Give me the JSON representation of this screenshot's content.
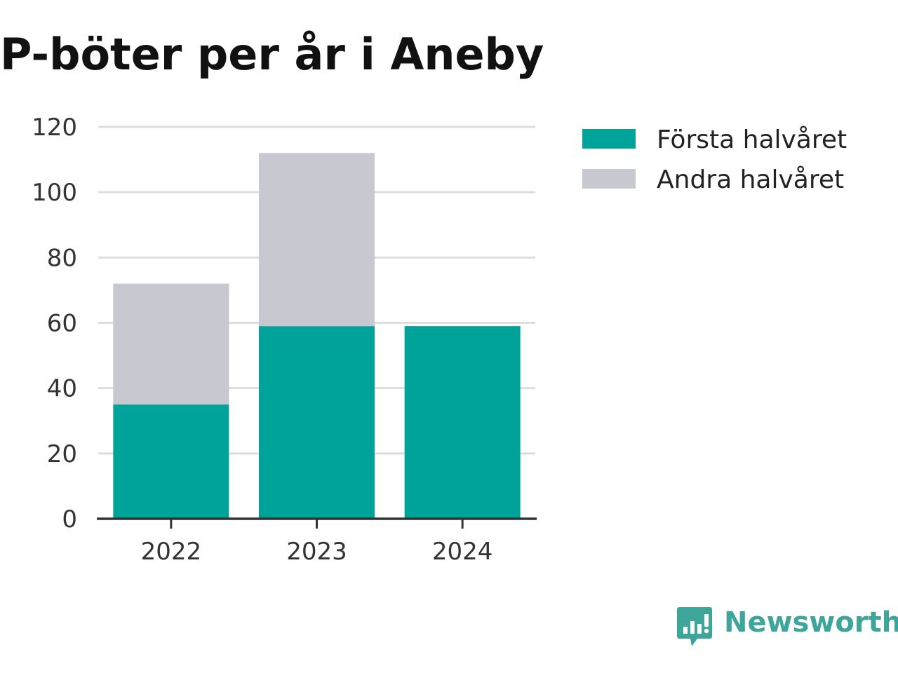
{
  "colors": {
    "first_half": "#00a39a",
    "second_half": "#c8c8d0",
    "grid": "#dddddd",
    "axis": "#333333",
    "brand": "#3da59a"
  },
  "brand": {
    "name": "Newsworthy",
    "icon": "newsworthy-logo-icon"
  },
  "chart_data": {
    "type": "bar",
    "stacked": true,
    "title": "P-böter per år i Aneby",
    "xlabel": "",
    "ylabel": "",
    "categories": [
      "2022",
      "2023",
      "2024"
    ],
    "series": [
      {
        "name": "Första halvåret",
        "values": [
          35,
          59,
          59
        ]
      },
      {
        "name": "Andra halvåret",
        "values": [
          37,
          53,
          null
        ]
      }
    ],
    "ylim": [
      0,
      120
    ],
    "yticks": [
      "0",
      "20",
      "40",
      "60",
      "80",
      "100",
      "120"
    ],
    "grid": true,
    "legend_position": "top-right"
  }
}
